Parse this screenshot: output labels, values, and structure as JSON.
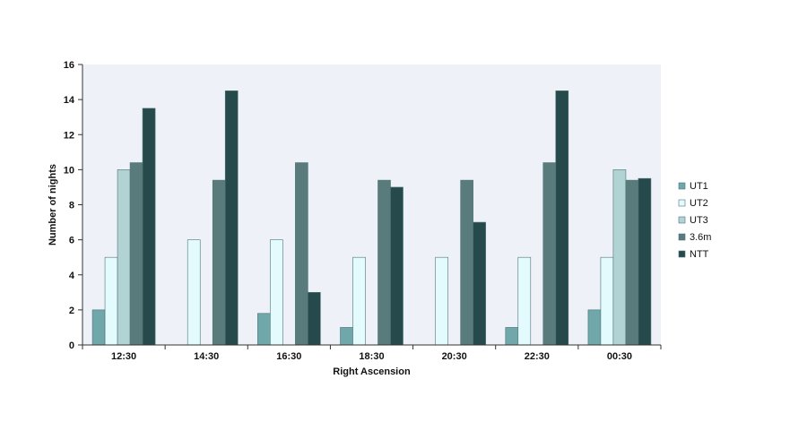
{
  "chart_data": {
    "type": "bar",
    "title": "",
    "xlabel": "Right Ascension",
    "ylabel": "Number of nights",
    "ylim": [
      0,
      16
    ],
    "yticks": [
      0,
      2,
      4,
      6,
      8,
      10,
      12,
      14,
      16
    ],
    "categories": [
      "12:30",
      "14:30",
      "16:30",
      "18:30",
      "20:30",
      "22:30",
      "00:30"
    ],
    "series": [
      {
        "name": "UT1",
        "color": "#6fa7aa",
        "values": [
          2,
          0,
          1.8,
          1,
          0,
          1,
          2
        ]
      },
      {
        "name": "UT2",
        "color": "#e3fbfd",
        "values": [
          5,
          6,
          6,
          5,
          5,
          5,
          5
        ]
      },
      {
        "name": "UT3",
        "color": "#b2d3d4",
        "values": [
          10,
          0,
          0,
          0,
          0,
          0,
          10
        ]
      },
      {
        "name": "3.6m",
        "color": "#5a7b7c",
        "values": [
          10.4,
          9.4,
          10.4,
          9.4,
          9.4,
          10.4,
          9.4
        ]
      },
      {
        "name": "NTT",
        "color": "#26494b",
        "values": [
          13.5,
          14.5,
          3,
          9,
          7,
          14.5,
          9.5
        ]
      }
    ],
    "grid": false,
    "legend_position": "right",
    "plot_background": "#eef1f7"
  }
}
